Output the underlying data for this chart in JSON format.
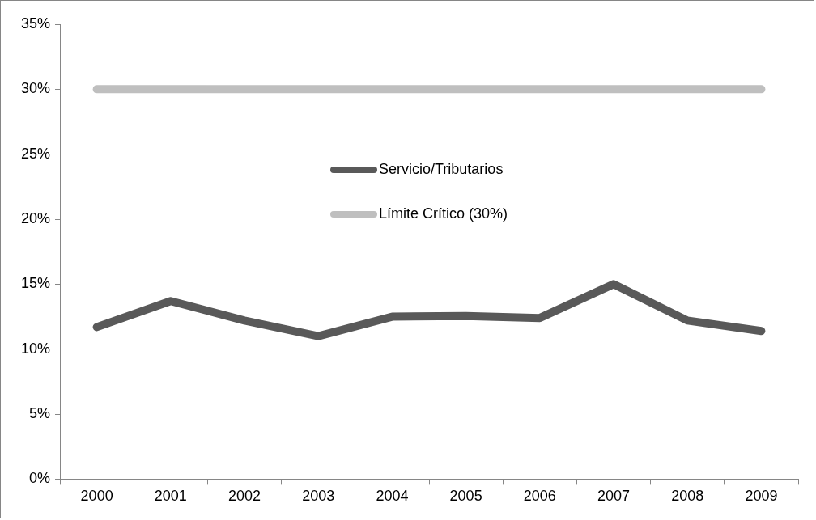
{
  "chart_data": {
    "type": "line",
    "categories": [
      "2000",
      "2001",
      "2002",
      "2003",
      "2004",
      "2005",
      "2006",
      "2007",
      "2008",
      "2009"
    ],
    "series": [
      {
        "name": "Servicio/Tributarios",
        "color": "#595959",
        "values": [
          11.7,
          13.7,
          12.2,
          11.0,
          12.5,
          12.55,
          12.4,
          15.0,
          12.2,
          11.4
        ]
      },
      {
        "name": "Límite Crítico (30%)",
        "color": "#bfbfbf",
        "values": [
          30,
          30,
          30,
          30,
          30,
          30,
          30,
          30,
          30,
          30
        ]
      }
    ],
    "ylim": [
      0,
      35
    ],
    "yticks": [
      {
        "value": 0,
        "label": "0%"
      },
      {
        "value": 5,
        "label": "5%"
      },
      {
        "value": 10,
        "label": "10%"
      },
      {
        "value": 15,
        "label": "15%"
      },
      {
        "value": 20,
        "label": "20%"
      },
      {
        "value": 25,
        "label": "25%"
      },
      {
        "value": 30,
        "label": "30%"
      },
      {
        "value": 35,
        "label": "35%"
      }
    ],
    "grid": false,
    "legend": "top",
    "marker": "none",
    "line_style": "solid"
  }
}
